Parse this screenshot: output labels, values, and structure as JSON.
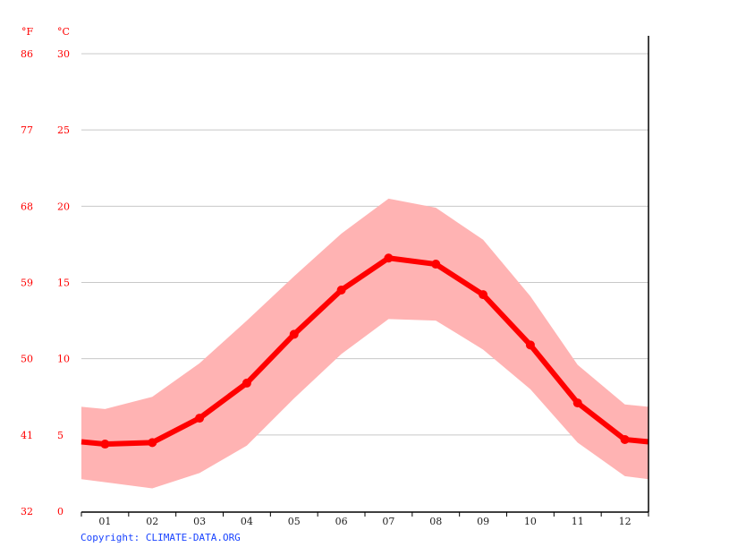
{
  "chart_data": {
    "type": "line",
    "title": "",
    "xlabel": "",
    "ylabel": "°C",
    "y2label": "°F",
    "categories": [
      "01",
      "02",
      "03",
      "04",
      "05",
      "06",
      "07",
      "08",
      "09",
      "10",
      "11",
      "12"
    ],
    "series": [
      {
        "name": "Average temperature (°C)",
        "values": [
          4.4,
          4.5,
          6.1,
          8.4,
          11.6,
          14.5,
          16.6,
          16.2,
          14.2,
          10.9,
          7.1,
          4.7
        ]
      },
      {
        "name": "Max temperature (°C)",
        "values": [
          6.7,
          7.5,
          9.7,
          12.5,
          15.4,
          18.2,
          20.5,
          19.9,
          17.8,
          14.1,
          9.6,
          7.0
        ]
      },
      {
        "name": "Min temperature (°C)",
        "values": [
          1.9,
          1.5,
          2.5,
          4.3,
          7.4,
          10.3,
          12.6,
          12.5,
          10.6,
          8.0,
          4.5,
          2.3
        ]
      }
    ],
    "ylim": [
      0,
      30
    ],
    "y_ticks_c": [
      0,
      5,
      10,
      15,
      20,
      25,
      30
    ],
    "y_ticks_f": [
      32,
      41,
      50,
      59,
      68,
      77,
      86
    ],
    "grid": true,
    "legend": "none"
  },
  "labels": {
    "unit_f": "°F",
    "unit_c": "°C",
    "copyright": "Copyright: CLIMATE-DATA.ORG"
  },
  "colors": {
    "line": "#ff0000",
    "band": "#ffb3b3",
    "grid": "#c8c8c8",
    "axis_text": "#ff0000",
    "copyright": "#1a44ff"
  }
}
